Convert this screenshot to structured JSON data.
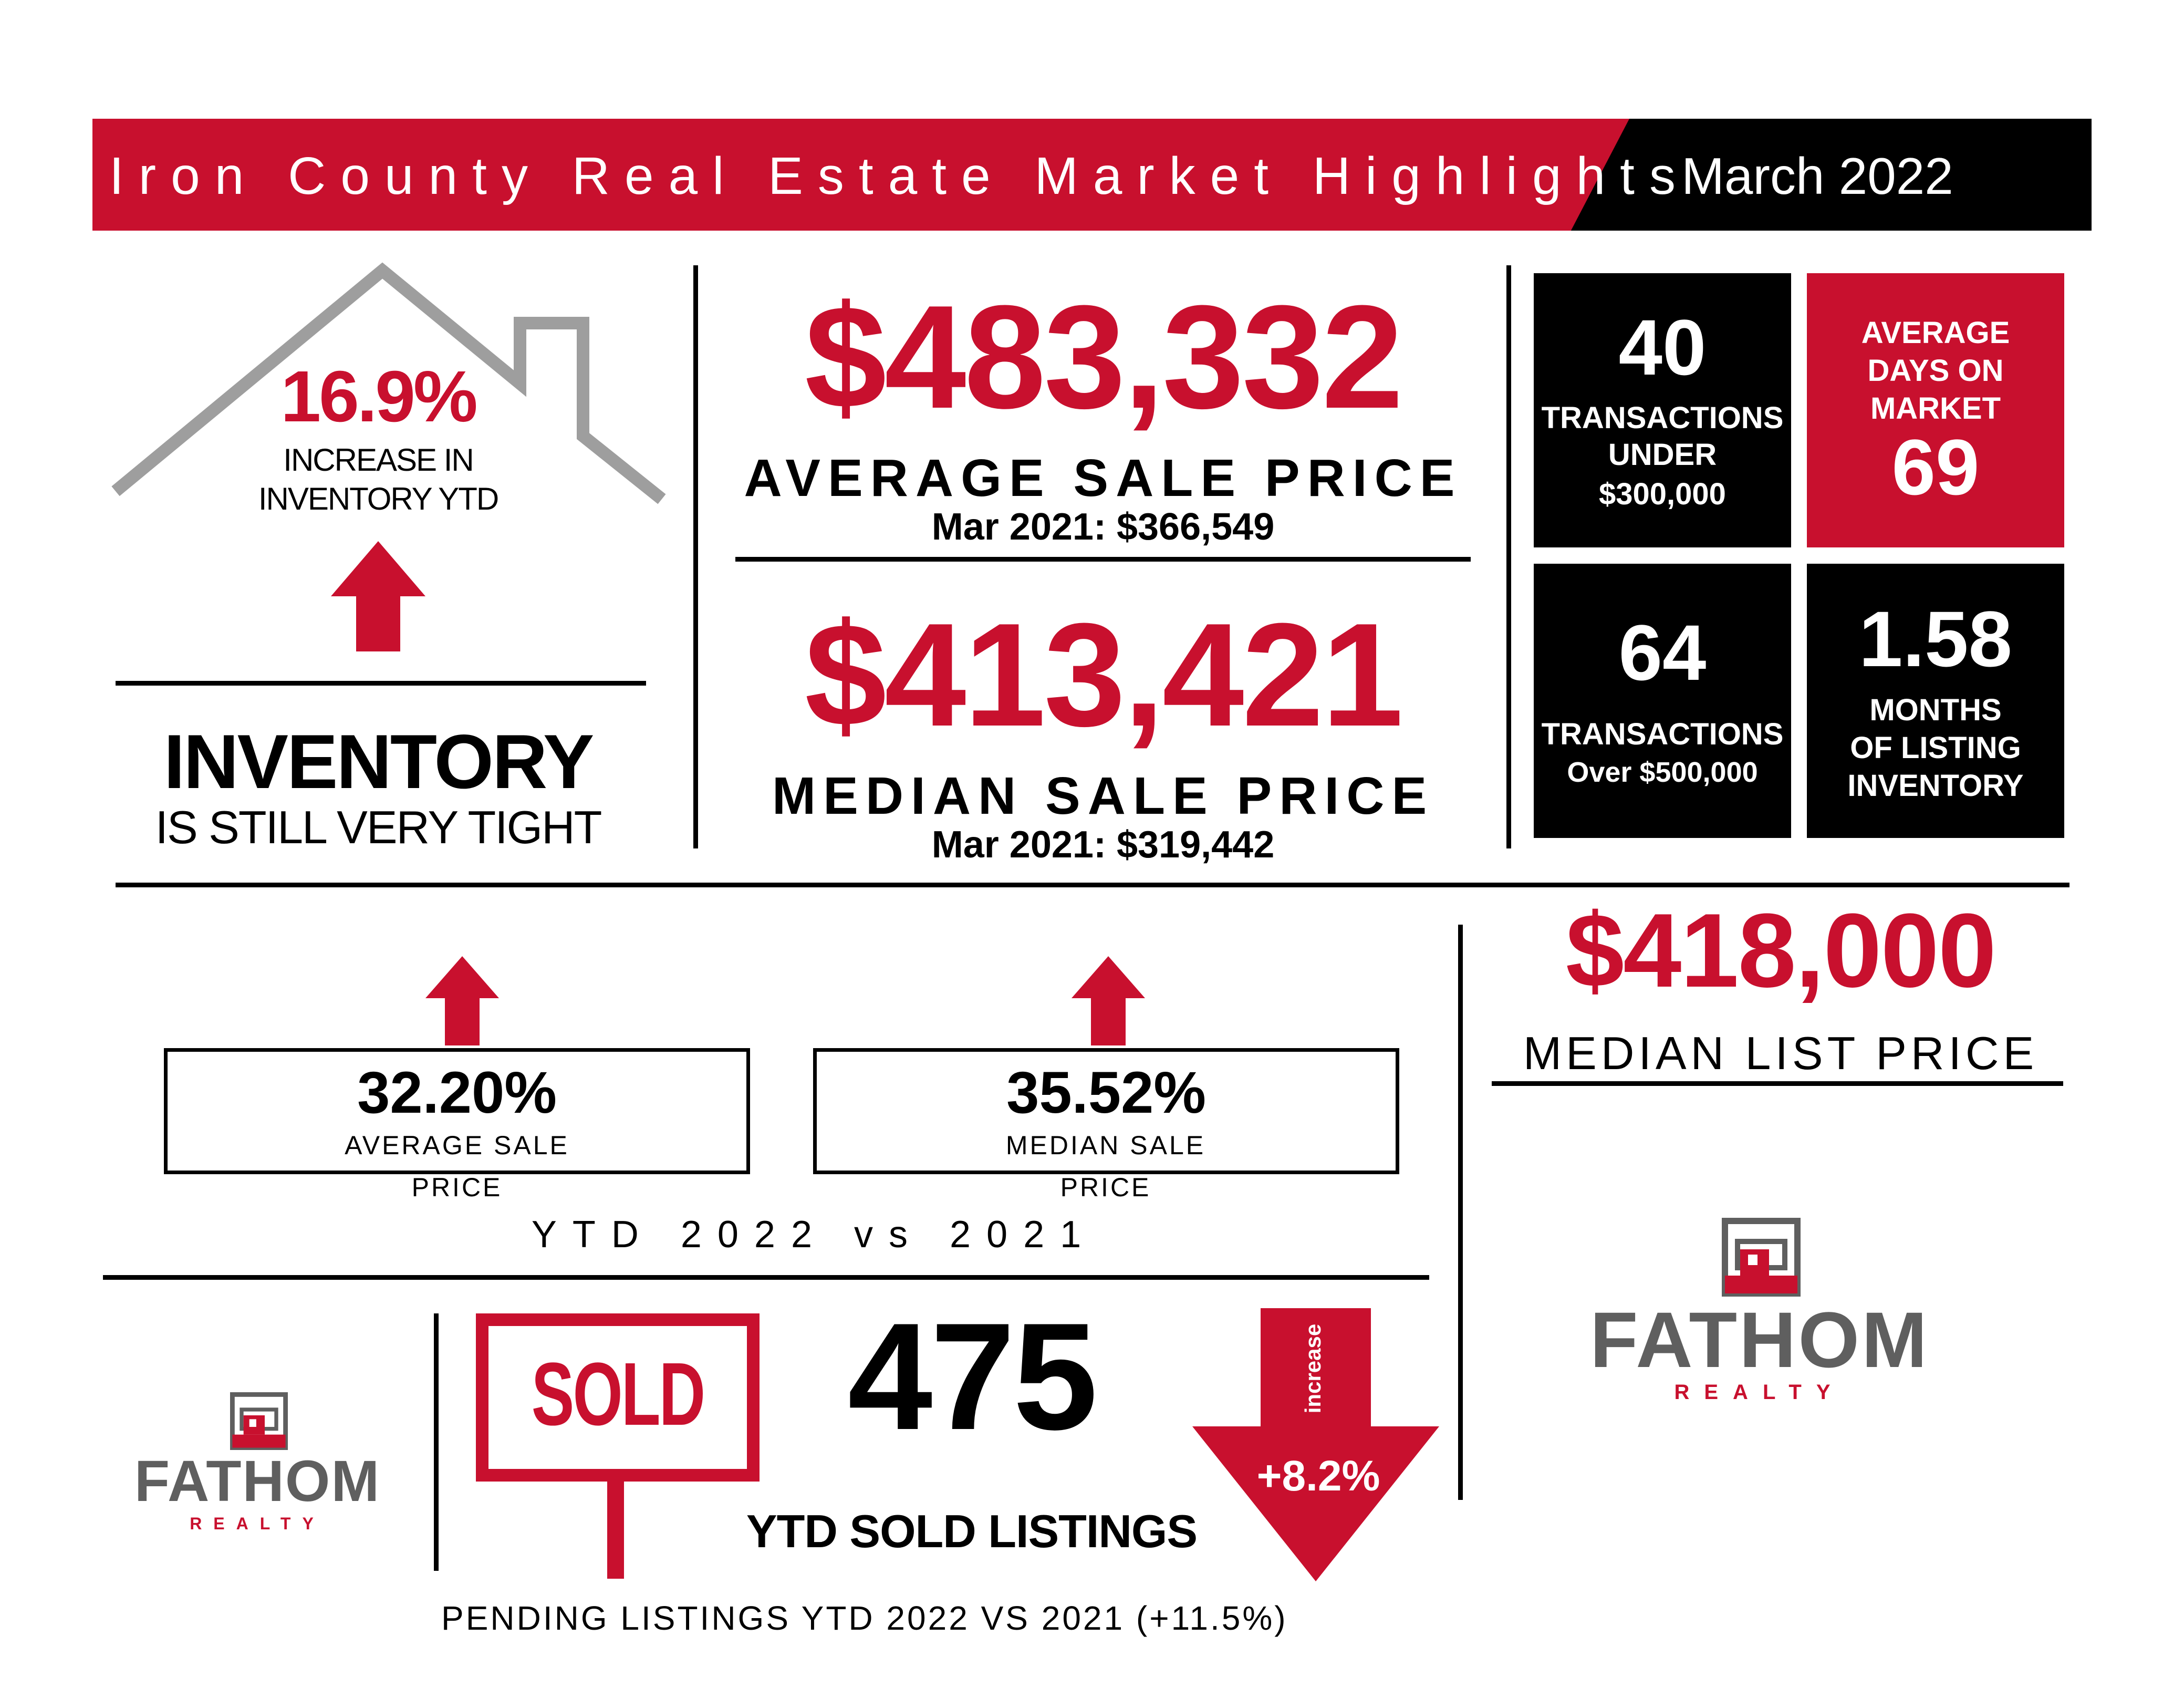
{
  "colors": {
    "red": "#c8102e",
    "black": "#000000",
    "gray": "#9e9e9e",
    "logo_gray": "#5f5f5f"
  },
  "header": {
    "title": "Iron County Real Estate Market Highlights",
    "date": "March 2022"
  },
  "inventory": {
    "percent": "16.9%",
    "percent_caption_line1": "INCREASE IN",
    "percent_caption_line2": "INVENTORY YTD",
    "heading": "INVENTORY",
    "subheading": "IS STILL VERY TIGHT",
    "icons": [
      "house-outline-icon",
      "up-arrow-icon"
    ]
  },
  "prices": {
    "average_value": "$483,332",
    "average_label": "AVERAGE SALE PRICE",
    "average_prior": "Mar 2021: $366,549",
    "median_value": "$413,421",
    "median_label": "MEDIAN SALE PRICE",
    "median_prior": "Mar 2021: $319,442"
  },
  "tiles": {
    "under_300_value": "40",
    "under_300_line1": "TRANSACTIONS",
    "under_300_line2": "UNDER",
    "under_300_line3": "$300,000",
    "dom_line1": "AVERAGE",
    "dom_line2": "DAYS ON",
    "dom_line3": "MARKET",
    "dom_value": "69",
    "over_500_value": "64",
    "over_500_line1": "TRANSACTIONS",
    "over_500_line2": "Over $500,000",
    "months_value": "1.58",
    "months_line1": "MONTHS",
    "months_line2": "OF LISTING",
    "months_line3": "INVENTORY"
  },
  "ytd": {
    "avg_change": "32.20%",
    "avg_label": "AVERAGE SALE PRICE",
    "median_change": "35.52%",
    "median_label": "MEDIAN SALE PRICE",
    "caption": "YTD 2022 vs 2021"
  },
  "list_price": {
    "value": "$418,000",
    "label": "MEDIAN LIST PRICE"
  },
  "sold": {
    "sign_text": "SOLD",
    "count": "475",
    "label": "YTD SOLD LISTINGS",
    "arrow_word": "increase",
    "arrow_value": "+8.2%",
    "pending": "PENDING LISTINGS YTD 2022 VS 2021 (+11.5%)"
  },
  "logo": {
    "name": "FATHOM",
    "sub": "REALTY"
  }
}
